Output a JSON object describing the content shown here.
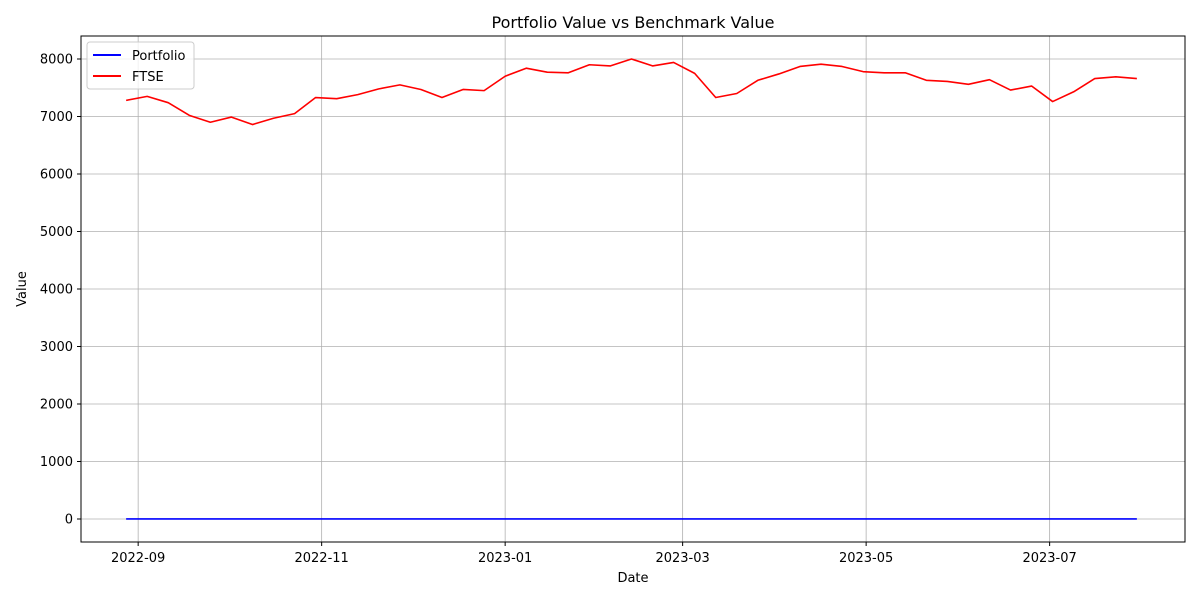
{
  "chart_data": {
    "type": "line",
    "title": "Portfolio Value vs Benchmark Value",
    "xlabel": "Date",
    "ylabel": "Value",
    "grid": true,
    "legend_position": "top-left",
    "xlim": [
      "2022-08-13",
      "2023-08-15"
    ],
    "ylim": [
      -400,
      8400
    ],
    "x_ticks": [
      "2022-09",
      "2022-11",
      "2023-01",
      "2023-03",
      "2023-05",
      "2023-07"
    ],
    "y_ticks": [
      0,
      1000,
      2000,
      3000,
      4000,
      5000,
      6000,
      7000,
      8000
    ],
    "x": [
      "2022-08-28",
      "2022-09-04",
      "2022-09-11",
      "2022-09-18",
      "2022-09-25",
      "2022-10-02",
      "2022-10-09",
      "2022-10-16",
      "2022-10-23",
      "2022-10-30",
      "2022-11-06",
      "2022-11-13",
      "2022-11-20",
      "2022-11-27",
      "2022-12-04",
      "2022-12-11",
      "2022-12-18",
      "2022-12-25",
      "2023-01-01",
      "2023-01-08",
      "2023-01-15",
      "2023-01-22",
      "2023-01-29",
      "2023-02-05",
      "2023-02-12",
      "2023-02-19",
      "2023-02-26",
      "2023-03-05",
      "2023-03-12",
      "2023-03-19",
      "2023-03-26",
      "2023-04-02",
      "2023-04-09",
      "2023-04-16",
      "2023-04-23",
      "2023-04-30",
      "2023-05-07",
      "2023-05-14",
      "2023-05-21",
      "2023-05-28",
      "2023-06-04",
      "2023-06-11",
      "2023-06-18",
      "2023-06-25",
      "2023-07-02",
      "2023-07-09",
      "2023-07-16",
      "2023-07-23",
      "2023-07-30"
    ],
    "series": [
      {
        "name": "Portfolio",
        "color": "#0000ff",
        "values": [
          1,
          1,
          1,
          1,
          1,
          1,
          1,
          1,
          1,
          1,
          1,
          1,
          1,
          1,
          1,
          1,
          1,
          1,
          1,
          1,
          1,
          1,
          1,
          1,
          1,
          1,
          1,
          1,
          1,
          1,
          1,
          1,
          1,
          1,
          1,
          1,
          1,
          1,
          1,
          1,
          1,
          1,
          1,
          1,
          1,
          1,
          1,
          1,
          1
        ]
      },
      {
        "name": "FTSE",
        "color": "#ff0000",
        "values": [
          7280,
          7350,
          7240,
          7020,
          6900,
          6990,
          6860,
          6970,
          7050,
          7330,
          7310,
          7380,
          7480,
          7550,
          7470,
          7330,
          7470,
          7450,
          7700,
          7840,
          7770,
          7760,
          7900,
          7880,
          8000,
          7880,
          7940,
          7750,
          7330,
          7400,
          7630,
          7740,
          7870,
          7910,
          7870,
          7780,
          7760,
          7760,
          7630,
          7610,
          7560,
          7640,
          7460,
          7530,
          7260,
          7430,
          7660,
          7690,
          7660
        ]
      }
    ]
  }
}
